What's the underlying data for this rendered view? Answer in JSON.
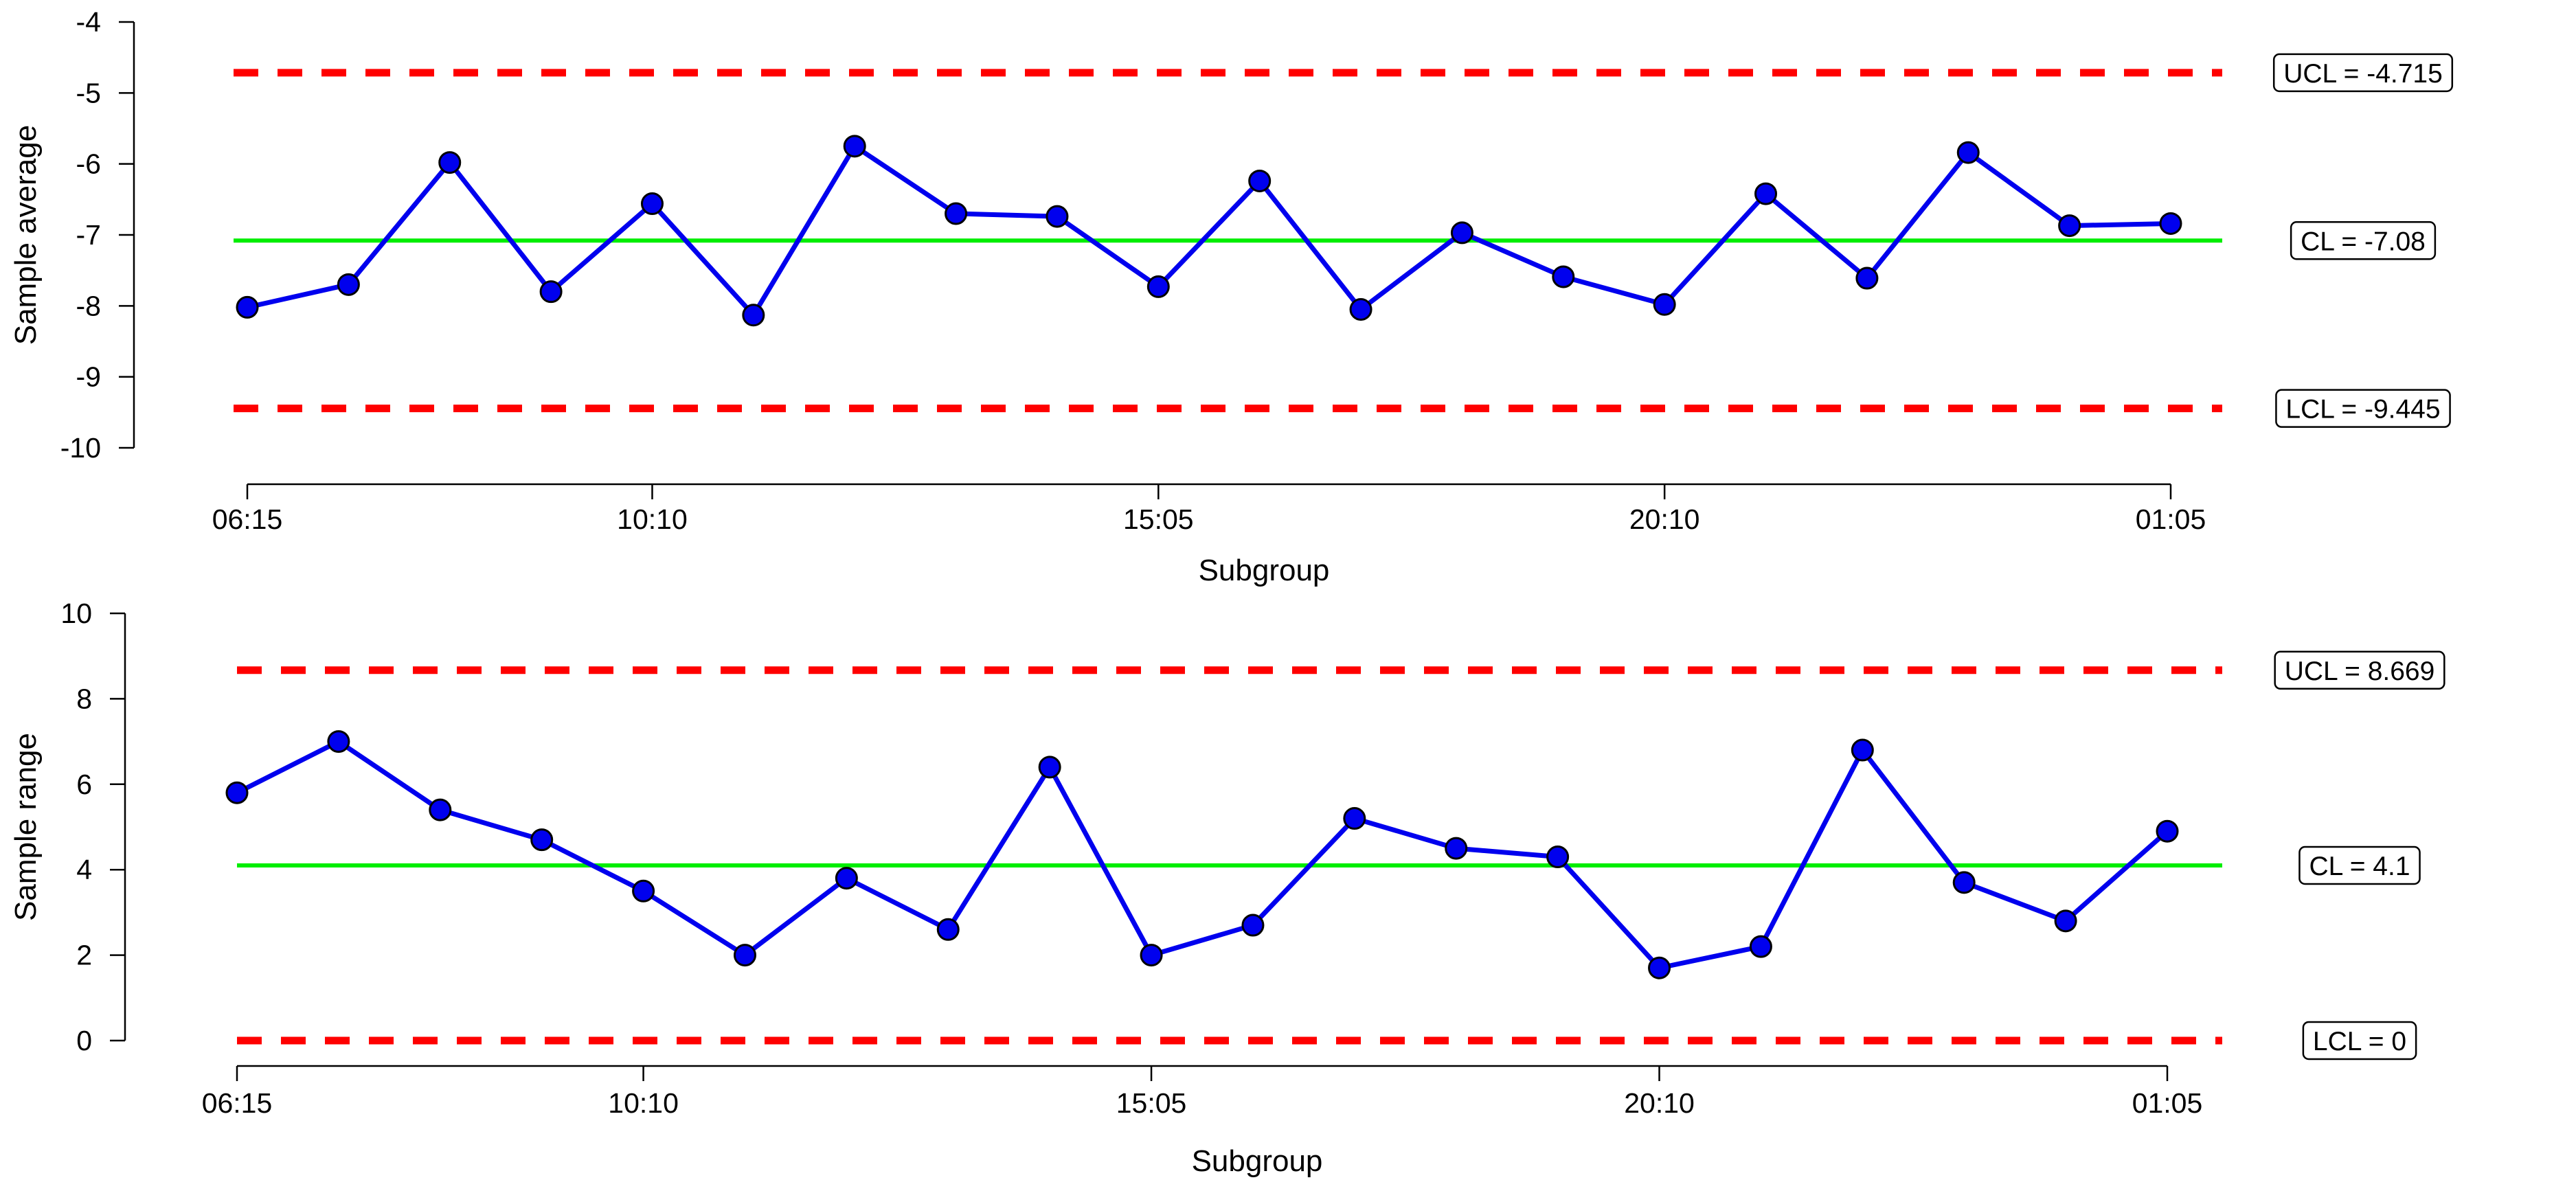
{
  "chart_data": [
    {
      "type": "line",
      "ylabel": "Sample average",
      "xlabel": "Subgroup",
      "ylim": [
        -10,
        -4
      ],
      "yticks": [
        -4,
        -5,
        -6,
        -7,
        -8,
        -9,
        -10
      ],
      "xtick_labels": [
        "06:15",
        "10:10",
        "15:05",
        "20:10",
        "01:05"
      ],
      "xtick_positions": [
        1,
        5,
        10,
        15,
        20
      ],
      "grid": false,
      "series": [
        {
          "values": [
            -8.02,
            -7.7,
            -5.98,
            -7.8,
            -6.56,
            -8.13,
            -5.75,
            -6.7,
            -6.74,
            -7.73,
            -6.24,
            -8.05,
            -6.97,
            -7.59,
            -7.98,
            -6.42,
            -7.61,
            -5.84,
            -6.87,
            -6.84
          ]
        }
      ],
      "limits": {
        "ucl": -4.715,
        "cl": -7.08,
        "lcl": -9.445,
        "ucl_label": "UCL = -4.715",
        "cl_label": "CL = -7.08",
        "lcl_label": "LCL = -9.445"
      },
      "colors": {
        "series": "#0000ee",
        "center": "#00ee00",
        "limit": "#ff0000"
      }
    },
    {
      "type": "line",
      "ylabel": "Sample range",
      "xlabel": "Subgroup",
      "ylim": [
        0,
        10
      ],
      "yticks": [
        0,
        2,
        4,
        6,
        8,
        10
      ],
      "xtick_labels": [
        "06:15",
        "10:10",
        "15:05",
        "20:10",
        "01:05"
      ],
      "xtick_positions": [
        1,
        5,
        10,
        15,
        20
      ],
      "grid": false,
      "series": [
        {
          "values": [
            5.8,
            7.0,
            5.4,
            4.7,
            3.5,
            2.0,
            3.8,
            2.6,
            6.4,
            2.0,
            2.7,
            5.2,
            4.5,
            4.3,
            1.7,
            2.2,
            6.8,
            3.7,
            2.8,
            4.9
          ]
        }
      ],
      "limits": {
        "ucl": 8.669,
        "cl": 4.1,
        "lcl": 0,
        "ucl_label": "UCL = 8.669",
        "cl_label": "CL = 4.1",
        "lcl_label": "LCL = 0"
      },
      "colors": {
        "series": "#0000ee",
        "center": "#00ee00",
        "limit": "#ff0000"
      }
    }
  ]
}
